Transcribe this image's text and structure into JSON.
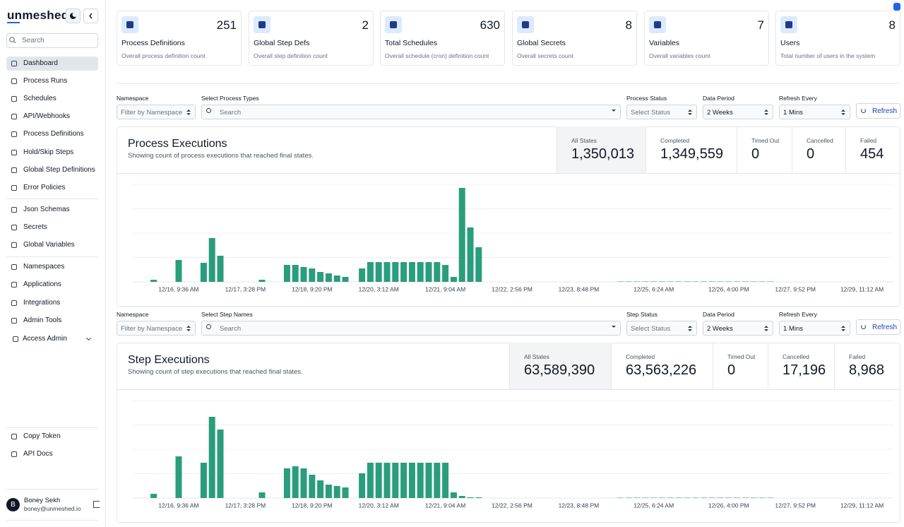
{
  "app": {
    "logo": "unmeshed",
    "search_placeholder": "Search"
  },
  "nav": {
    "main": [
      "Dashboard",
      "Process Runs",
      "Schedules",
      "API/Webhooks",
      "Process Definitions",
      "Hold/Skip Steps",
      "Global Step Definitions",
      "Error Policies"
    ],
    "config": [
      "Json Schemas",
      "Secrets",
      "Global Variables"
    ],
    "admin": [
      "Namespaces",
      "Applications",
      "Integrations",
      "Admin Tools",
      "Access Admin"
    ],
    "footer": [
      "Copy Token",
      "API Docs"
    ]
  },
  "user": {
    "initial": "B",
    "name": "Boney Sekh",
    "email": "boney@unmeshed.io"
  },
  "cards": [
    {
      "title": "Process Definitions",
      "count": 251,
      "description": "Overall process definition count"
    },
    {
      "title": "Global Step Defs",
      "count": 2,
      "description": "Overall step definition count"
    },
    {
      "title": "Total Schedules",
      "count": 630,
      "description": "Overall schedule (cron) definition count"
    },
    {
      "title": "Global Secrets",
      "count": 8,
      "description": "Overall secrets count"
    },
    {
      "title": "Variables",
      "count": 7,
      "description": "Overall variables count"
    },
    {
      "title": "Users",
      "count": 8,
      "description": "Total number of users in the system"
    }
  ],
  "panels": [
    {
      "filters": [
        {
          "label": "Namespace",
          "placeholder": "Filter by Namespace"
        },
        {
          "label": "Select Process Types",
          "placeholder": "Search"
        },
        {
          "label": "Process Status",
          "placeholder": "Select Status"
        },
        {
          "label": "Data Period",
          "value": "2 Weeks"
        },
        {
          "label": "Refresh Every",
          "value": "1 Mins"
        }
      ],
      "refresh_button": "Refresh",
      "title": "Process Executions",
      "subtitle": "Showing count of process executions that reached final states.",
      "stats": [
        {
          "label": "All States",
          "value": "1,350,013"
        },
        {
          "label": "Completed",
          "value": "1,349,559"
        },
        {
          "label": "Timed Out",
          "value": "0"
        },
        {
          "label": "Cancelled",
          "value": "0"
        },
        {
          "label": "Failed",
          "value": "454"
        }
      ],
      "chart": {
        "type": "bar",
        "color": "#2a9d7c",
        "categories": [
          null,
          null,
          null,
          null,
          null,
          "12/16, 9:36 AM",
          null,
          null,
          null,
          null,
          null,
          null,
          null,
          "12/17, 3:28 PM",
          null,
          null,
          null,
          null,
          null,
          null,
          null,
          "12/18, 9:20 PM",
          null,
          null,
          null,
          null,
          null,
          null,
          null,
          "12/20, 3:12 AM",
          null,
          null,
          null,
          null,
          null,
          null,
          null,
          "12/21, 9:04 AM",
          null,
          null,
          null,
          null,
          null,
          null,
          null,
          "12/22, 2:56 PM",
          null,
          null,
          null,
          null,
          null,
          null,
          null,
          "12/23, 8:48 PM",
          null,
          null,
          null,
          null,
          null,
          null,
          null,
          null,
          "12/25, 6:24 AM",
          null,
          null,
          null,
          null,
          null,
          null,
          null,
          null,
          "12/26, 4:00 PM",
          null,
          null,
          null,
          null,
          null,
          null,
          null,
          "12/27, 9:52 PM",
          null,
          null,
          null,
          null,
          null,
          null,
          null,
          "12/29, 11:12 AM",
          null,
          null,
          null
        ],
        "values": [
          0,
          0,
          3,
          0,
          0,
          31,
          0,
          0,
          27,
          62,
          37,
          0,
          0,
          0,
          0,
          3,
          0,
          0,
          24,
          24,
          21,
          19,
          14,
          12,
          9,
          7,
          0,
          19,
          28,
          28,
          28,
          28,
          28,
          28,
          28,
          28,
          28,
          24,
          7,
          133,
          77,
          49,
          0,
          0,
          0,
          0,
          0,
          0,
          0,
          0,
          0,
          0,
          0,
          0,
          0,
          0,
          0,
          0,
          0.5,
          0.5,
          0.5,
          0.5,
          0.5,
          0.5,
          0.5,
          0.5,
          0.5,
          0.5,
          0.5,
          0.5,
          0.5,
          0.5,
          0.5,
          0.5,
          0.5,
          0.5,
          0.5,
          0,
          0,
          0,
          0,
          0,
          0,
          0,
          0,
          0,
          0,
          0,
          0,
          0,
          0
        ]
      }
    },
    {
      "filters": [
        {
          "label": "Namespace",
          "placeholder": "Filter by Namespace"
        },
        {
          "label": "Select Step Names",
          "placeholder": "Search"
        },
        {
          "label": "Step Status",
          "placeholder": "Select Status"
        },
        {
          "label": "Data Period",
          "value": "2 Weeks"
        },
        {
          "label": "Refresh Every",
          "value": "1 Mins"
        }
      ],
      "refresh_button": "Refresh",
      "title": "Step Executions",
      "subtitle": "Showing count of step executions that reached final states.",
      "stats": [
        {
          "label": "All States",
          "value": "63,589,390"
        },
        {
          "label": "Completed",
          "value": "63,563,226"
        },
        {
          "label": "Timed Out",
          "value": "0"
        },
        {
          "label": "Cancelled",
          "value": "17,196"
        },
        {
          "label": "Failed",
          "value": "8,968"
        }
      ],
      "chart": {
        "type": "bar",
        "color": "#2a9d7c",
        "categories": [
          null,
          null,
          null,
          null,
          null,
          "12/16, 9:36 AM",
          null,
          null,
          null,
          null,
          null,
          null,
          null,
          "12/17, 3:28 PM",
          null,
          null,
          null,
          null,
          null,
          null,
          null,
          "12/18, 9:20 PM",
          null,
          null,
          null,
          null,
          null,
          null,
          null,
          "12/20, 3:12 AM",
          null,
          null,
          null,
          null,
          null,
          null,
          null,
          "12/21, 9:04 AM",
          null,
          null,
          null,
          null,
          null,
          null,
          null,
          "12/22, 2:56 PM",
          null,
          null,
          null,
          null,
          null,
          null,
          null,
          "12/23, 8:48 PM",
          null,
          null,
          null,
          null,
          null,
          null,
          null,
          null,
          "12/25, 6:24 AM",
          null,
          null,
          null,
          null,
          null,
          null,
          null,
          null,
          "12/26, 4:00 PM",
          null,
          null,
          null,
          null,
          null,
          null,
          null,
          "12/27, 9:52 PM",
          null,
          null,
          null,
          null,
          null,
          null,
          null,
          "12/29, 11:12 AM",
          null,
          null,
          null
        ],
        "values": [
          0,
          0,
          6,
          0,
          0,
          59,
          0,
          0,
          50,
          115,
          97,
          0,
          0,
          0,
          0,
          8,
          0,
          0,
          42,
          45,
          42,
          33,
          25,
          19,
          17,
          15,
          0,
          35,
          50,
          50,
          50,
          50,
          50,
          50,
          50,
          50,
          50,
          50,
          8,
          3,
          1,
          1,
          0,
          0,
          0,
          0,
          0,
          0,
          0,
          0,
          0,
          0,
          0,
          0,
          0,
          0,
          0,
          0,
          0.5,
          0.5,
          0.5,
          0.5,
          0.5,
          0.5,
          0.5,
          0.5,
          0.5,
          0.5,
          0.5,
          0.5,
          0.5,
          0.5,
          0.5,
          0.5,
          0.5,
          0.5,
          0.5,
          0,
          0,
          0,
          0,
          0,
          0,
          0,
          0,
          0,
          0,
          0,
          0,
          0,
          0
        ]
      }
    }
  ]
}
